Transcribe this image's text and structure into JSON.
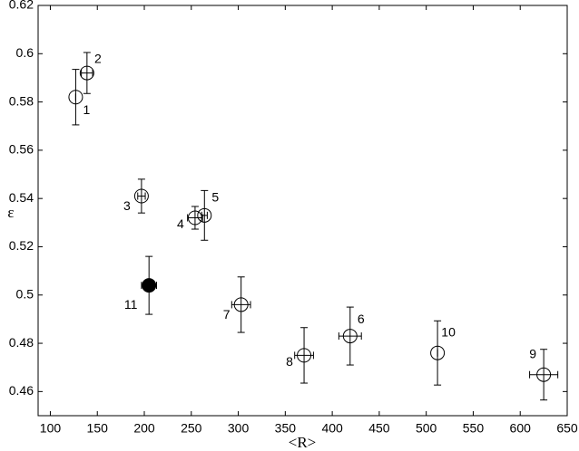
{
  "chart_data": {
    "type": "scatter",
    "xlabel": "<R>",
    "ylabel": "ε",
    "xlim": [
      87,
      650
    ],
    "ylim": [
      0.45,
      0.62
    ],
    "xticks": [
      100,
      150,
      200,
      250,
      300,
      350,
      400,
      450,
      500,
      550,
      600,
      650
    ],
    "yticks": [
      0.46,
      0.48,
      0.5,
      0.52,
      0.54,
      0.56,
      0.58,
      0.6,
      0.62
    ],
    "color": "#000000",
    "points": [
      {
        "label": "1",
        "x": 127,
        "y": 0.582,
        "xerr": 0,
        "yerr": 0.0115,
        "filled": false
      },
      {
        "label": "2",
        "x": 139,
        "y": 0.592,
        "xerr": 6,
        "yerr": 0.0085,
        "filled": false
      },
      {
        "label": "3",
        "x": 197,
        "y": 0.541,
        "xerr": 4,
        "yerr": 0.007,
        "filled": false
      },
      {
        "label": "4",
        "x": 254,
        "y": 0.532,
        "xerr": 8,
        "yerr": 0.0047,
        "filled": false
      },
      {
        "label": "5",
        "x": 264,
        "y": 0.533,
        "xerr": 3,
        "yerr": 0.0103,
        "filled": false
      },
      {
        "label": "6",
        "x": 419,
        "y": 0.483,
        "xerr": 12,
        "yerr": 0.012,
        "filled": false
      },
      {
        "label": "7",
        "x": 303,
        "y": 0.496,
        "xerr": 10,
        "yerr": 0.0115,
        "filled": false
      },
      {
        "label": "8",
        "x": 370,
        "y": 0.475,
        "xerr": 10,
        "yerr": 0.0115,
        "filled": false
      },
      {
        "label": "9",
        "x": 625,
        "y": 0.467,
        "xerr": 15,
        "yerr": 0.0105,
        "filled": false
      },
      {
        "label": "10",
        "x": 512,
        "y": 0.476,
        "xerr": 0,
        "yerr": 0.0133,
        "filled": false
      },
      {
        "label": "11",
        "x": 205,
        "y": 0.504,
        "xerr": 8,
        "yerr": 0.012,
        "filled": true
      }
    ]
  }
}
